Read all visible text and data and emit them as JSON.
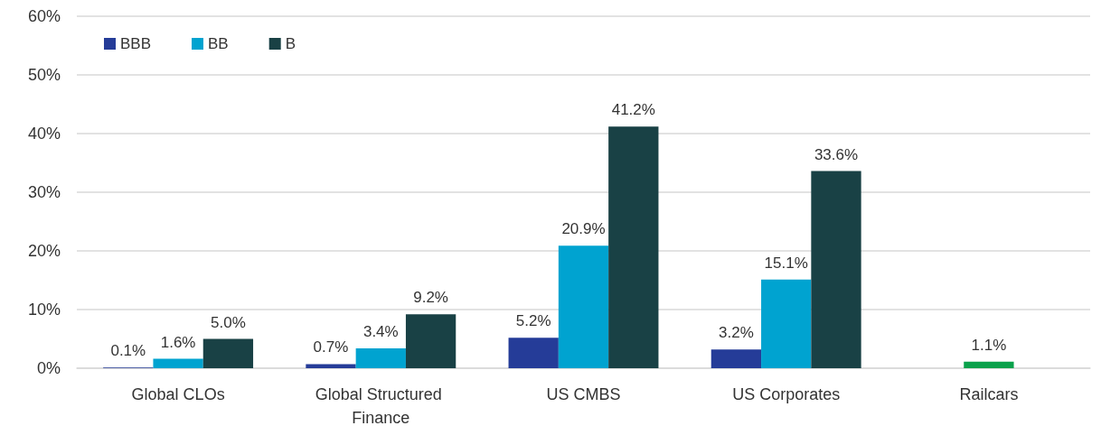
{
  "chart_data": {
    "type": "bar",
    "categories": [
      "Global CLOs",
      "Global Structured Finance",
      "US CMBS",
      "US Corporates",
      "Railcars"
    ],
    "series": [
      {
        "name": "BBB",
        "color": "#253c98",
        "values": [
          0.1,
          0.7,
          5.2,
          3.2,
          null
        ],
        "value_labels": [
          "0.1%",
          "0.7%",
          "5.2%",
          "3.2%",
          null
        ]
      },
      {
        "name": "BB",
        "color": "#00a3d0",
        "colors": [
          "#00a3d0",
          "#00a3d0",
          "#00a3d0",
          "#00a3d0",
          "#0aa14b"
        ],
        "values": [
          1.6,
          3.4,
          20.9,
          15.1,
          1.1
        ],
        "value_labels": [
          "1.6%",
          "3.4%",
          "20.9%",
          "15.1%",
          "1.1%"
        ]
      },
      {
        "name": "B",
        "color": "#194145",
        "values": [
          5.0,
          9.2,
          41.2,
          33.6,
          null
        ],
        "value_labels": [
          "5.0%",
          "9.2%",
          "41.2%",
          "33.6%",
          null
        ]
      }
    ],
    "ylim": [
      0,
      60
    ],
    "yticks": [
      {
        "value": 0,
        "label": "0%"
      },
      {
        "value": 10,
        "label": "10%"
      },
      {
        "value": 20,
        "label": "20%"
      },
      {
        "value": 30,
        "label": "30%"
      },
      {
        "value": 40,
        "label": "40%"
      },
      {
        "value": 50,
        "label": "50%"
      },
      {
        "value": 60,
        "label": "60%"
      }
    ],
    "grid": "y",
    "legend": "top left"
  }
}
